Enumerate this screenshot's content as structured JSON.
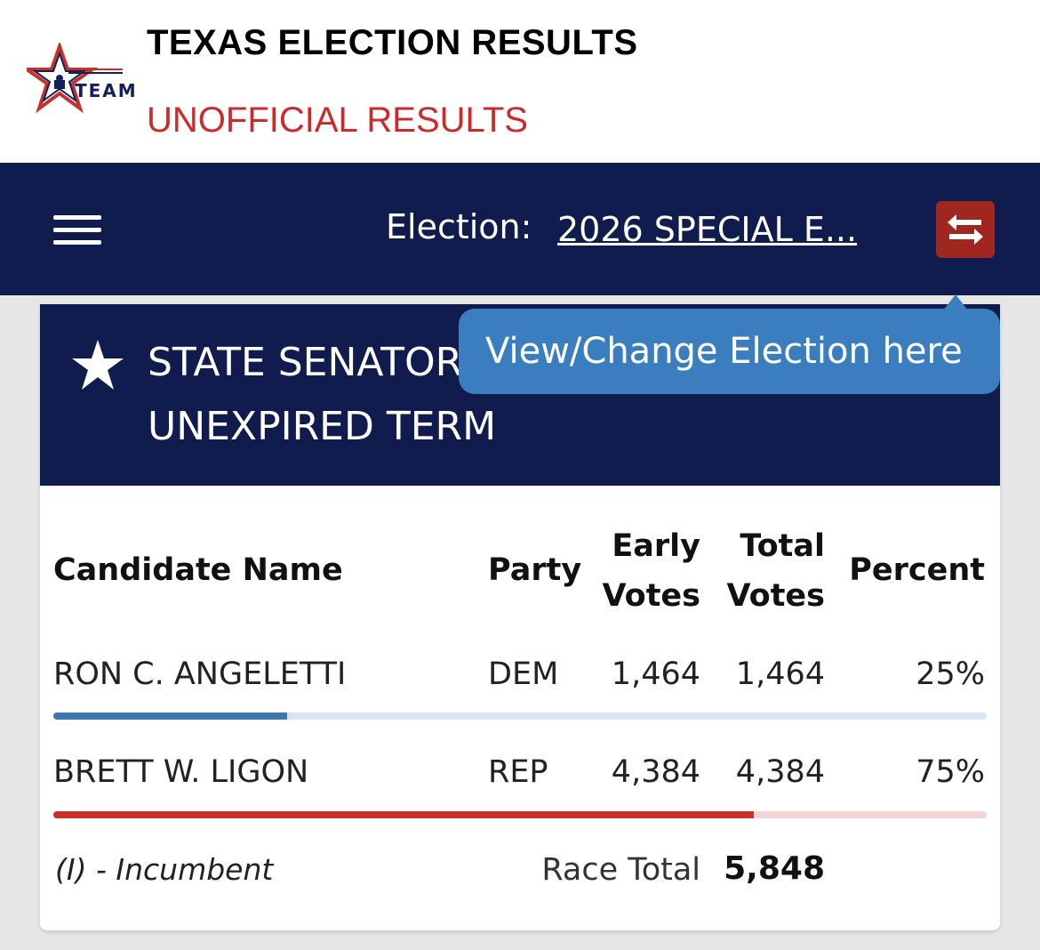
{
  "header": {
    "logo_text": "TEAM",
    "title": "TEXAS ELECTION RESULTS",
    "subtitle": "UNOFFICIAL RESULTS",
    "subtitle_color": "#cc2a2a"
  },
  "nav": {
    "menu_icon": "hamburger-icon",
    "election_label": "Election:",
    "election_value": "2026 SPECIAL E...",
    "swap_icon": "swap-arrows-icon",
    "swap_color": "#a02620"
  },
  "tooltip": {
    "text": "View/Change Election here"
  },
  "race": {
    "icon": "star-icon",
    "title_line1": "STATE SENATOR",
    "title_line2": "UNEXPIRED TERM"
  },
  "table": {
    "headers": {
      "candidate": "Candidate Name",
      "party": "Party",
      "early_1": "Early",
      "early_2": "Votes",
      "total_1": "Total",
      "total_2": "Votes",
      "percent": "Percent"
    },
    "rows": [
      {
        "candidate": "RON C. ANGELETTI",
        "party": "DEM",
        "early_votes": "1,464",
        "total_votes": "1,464",
        "percent": "25%",
        "share": 0.25,
        "bar_color": "#3a76b4",
        "bar_bg": "#d6e5f1"
      },
      {
        "candidate": "BRETT W. LIGON",
        "party": "REP",
        "early_votes": "4,384",
        "total_votes": "4,384",
        "percent": "75%",
        "share": 0.75,
        "bar_color": "#c8302a",
        "bar_bg": "#f2d4d4"
      }
    ],
    "footnote": "(I) - Incumbent",
    "race_total_label": "Race Total",
    "race_total_value": "5,848"
  }
}
